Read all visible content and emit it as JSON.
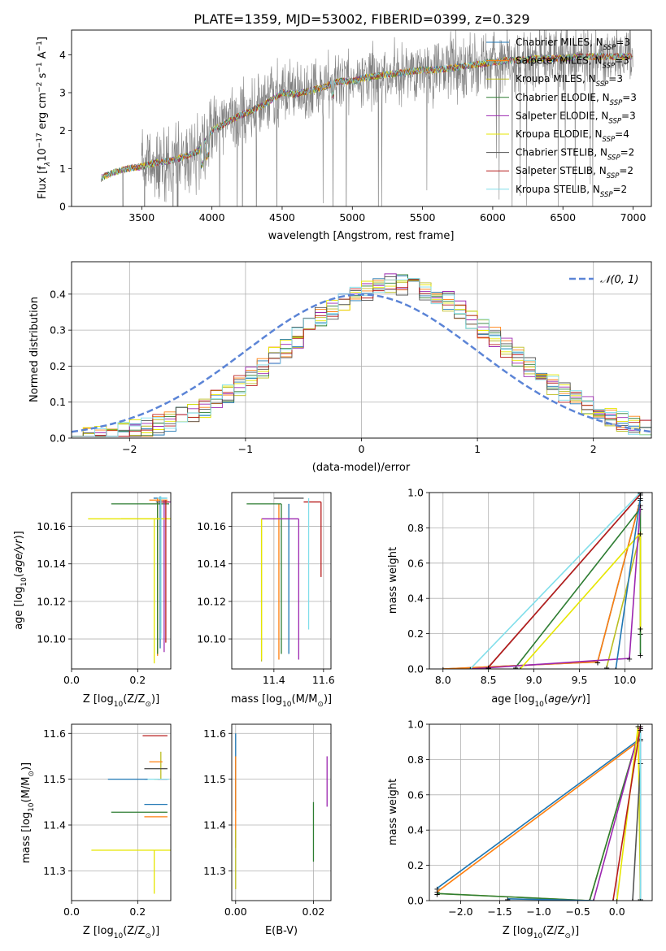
{
  "figure": {
    "title": "PLATE=1359, MJD=53002, FIBERID=0399, z=0.329"
  },
  "model_names": [
    {
      "label": "Chabrier MILES, N",
      "sub": "SSP",
      "tail": "=3",
      "color": "#1f77b4"
    },
    {
      "label": "Salpeter MILES, N",
      "sub": "SSP",
      "tail": "=3",
      "color": "#ff7f0e"
    },
    {
      "label": "Kroupa MILES, N",
      "sub": "SSP",
      "tail": "=3",
      "color": "#bcbd22"
    },
    {
      "label": "Chabrier ELODIE, N",
      "sub": "SSP",
      "tail": "=3",
      "color": "#2e7d32"
    },
    {
      "label": "Salpeter ELODIE, N",
      "sub": "SSP",
      "tail": "=3",
      "color": "#9c27b0"
    },
    {
      "label": "Kroupa ELODIE, N",
      "sub": "SSP",
      "tail": "=4",
      "color": "#e6e600"
    },
    {
      "label": "Chabrier STELIB, N",
      "sub": "SSP",
      "tail": "=2",
      "color": "#555555"
    },
    {
      "label": "Salpeter STELIB, N",
      "sub": "SSP",
      "tail": "=2",
      "color": "#b71c1c"
    },
    {
      "label": "Kroupa STELIB, N",
      "sub": "SSP",
      "tail": "=2",
      "color": "#80deea"
    }
  ],
  "chart_data": [
    {
      "id": "spectrum",
      "type": "line",
      "xlabel": "wavelength [Angstrom, rest frame]",
      "ylabel_parts": [
        "Flux [f",
        "λ",
        "10",
        "−17",
        " erg cm",
        "−2",
        " s",
        "−1",
        " A",
        "−1",
        "]"
      ],
      "xlim": [
        3000,
        7130
      ],
      "ylim": [
        0,
        4.65
      ],
      "xticks": [
        3500,
        4000,
        4500,
        5000,
        5500,
        6000,
        6500,
        7000
      ],
      "yticks": [
        0,
        1,
        2,
        3,
        4
      ],
      "data_color": "#808080",
      "continuum": {
        "x": [
          3210,
          3300,
          3400,
          3500,
          3600,
          3700,
          3800,
          3900,
          4000,
          4100,
          4200,
          4300,
          4400,
          4500,
          4600,
          4700,
          4800,
          4900,
          5000,
          5100,
          5200,
          5300,
          5400,
          5500,
          5600,
          5700,
          5800,
          5900,
          6000,
          6100,
          6200,
          6300,
          6400,
          6500,
          6600,
          6700,
          6800,
          6900,
          7000
        ],
        "y": [
          0.75,
          0.9,
          1.0,
          1.05,
          1.15,
          1.2,
          1.3,
          1.45,
          2.0,
          2.2,
          2.4,
          2.55,
          2.75,
          3.0,
          2.95,
          3.05,
          3.15,
          3.3,
          3.3,
          3.4,
          3.45,
          3.5,
          3.55,
          3.6,
          3.6,
          3.65,
          3.7,
          3.75,
          3.8,
          3.85,
          3.85,
          3.9,
          3.9,
          3.9,
          3.95,
          3.95,
          3.95,
          3.95,
          3.95
        ]
      }
    },
    {
      "id": "residuals",
      "type": "step",
      "xlabel": "(data-model)/error",
      "ylabel": "Normed distribution",
      "xlim": [
        -2.5,
        2.5
      ],
      "ylim": [
        0,
        0.49
      ],
      "xticks": [
        -2,
        -1,
        0,
        1,
        2
      ],
      "yticks": [
        0.0,
        0.1,
        0.2,
        0.3,
        0.4
      ],
      "gaussian_label": "𝒩(0, 1)",
      "gaussian_color": "#5b84d6",
      "bin_width": 0.1
    },
    {
      "id": "age_vs_Z",
      "type": "errorbar",
      "xlabel": "Z [log",
      "xlabel_sub": "10",
      "xlabel_tail": "(Z/Z",
      "xlabel_end": ")]",
      "ylabel": "age  [log",
      "ylabel_sub": "10",
      "ylabel_tail": "(age/yr)]",
      "xlim": [
        0,
        0.3
      ],
      "ylim": [
        10.084,
        10.178
      ],
      "xticks": [
        0.0,
        0.2
      ],
      "yticks": [
        10.1,
        10.12,
        10.14,
        10.16
      ],
      "points": [
        {
          "x": 0.268,
          "xerr": [
            0.02,
            0.02
          ],
          "y": 10.175,
          "yerr": [
            0.08,
            0.001
          ]
        },
        {
          "x": 0.26,
          "xerr": [
            0.025,
            0.03
          ],
          "y": 10.174,
          "yerr": [
            0.083,
            0.001
          ]
        },
        {
          "x": 0.25,
          "xerr": [
            0.1,
            0.04
          ],
          "y": 10.164,
          "yerr": [
            0.0,
            0.0
          ]
        },
        {
          "x": 0.26,
          "xerr": [
            0.14,
            0.035
          ],
          "y": 10.172,
          "yerr": [
            0.08,
            0.001
          ]
        },
        {
          "x": 0.28,
          "xerr": [
            0.02,
            0.02
          ],
          "y": 10.173,
          "yerr": [
            0.08,
            0.001
          ]
        },
        {
          "x": 0.25,
          "xerr": [
            0.2,
            0.05
          ],
          "y": 10.164,
          "yerr": [
            0.077,
            0.0
          ]
        },
        {
          "x": 0.27,
          "xerr": [
            0.015,
            0.02
          ],
          "y": 10.173,
          "yerr": [
            0.07,
            0.001
          ]
        },
        {
          "x": 0.285,
          "xerr": [
            0.015,
            0.01
          ],
          "y": 10.173,
          "yerr": [
            0.075,
            0.001
          ]
        },
        {
          "x": 0.27,
          "xerr": [
            0.01,
            0.02
          ],
          "y": 10.175,
          "yerr": [
            0.075,
            0.001
          ]
        }
      ]
    },
    {
      "id": "age_vs_mass",
      "type": "errorbar",
      "xlabel": "mass [log",
      "xlabel_sub": "10",
      "xlabel_tail": "(M/M",
      "xlabel_end": ")]",
      "xlim": [
        11.23,
        11.63
      ],
      "ylim": [
        10.084,
        10.178
      ],
      "xticks": [
        11.4,
        11.6
      ],
      "yticks": [
        10.1,
        10.12,
        10.14,
        10.16
      ],
      "points": [
        {
          "x": 11.46,
          "xerr": [
            0.0,
            0.0
          ],
          "y": 10.172,
          "yerr": [
            0.08,
            0.0
          ]
        },
        {
          "x": 11.42,
          "xerr": [
            0.0,
            0.0
          ],
          "y": 10.172,
          "yerr": [
            0.083,
            0.0
          ]
        },
        {
          "x": 11.35,
          "xerr": [
            0.0,
            0.0
          ],
          "y": 10.164,
          "yerr": [
            0.076,
            0.0
          ]
        },
        {
          "x": 11.43,
          "xerr": [
            0.14,
            0.0
          ],
          "y": 10.172,
          "yerr": [
            0.08,
            0.0
          ]
        },
        {
          "x": 11.5,
          "xerr": [
            0.15,
            0.0
          ],
          "y": 10.164,
          "yerr": [
            0.075,
            0.0
          ]
        },
        {
          "x": 11.35,
          "xerr": [
            0.0,
            0.0
          ],
          "y": 10.164,
          "yerr": [
            0.075,
            0.0
          ]
        },
        {
          "x": 11.52,
          "xerr": [
            0.12,
            0.0
          ],
          "y": 10.175,
          "yerr": [
            0.0,
            0.0
          ]
        },
        {
          "x": 11.59,
          "xerr": [
            0.07,
            0.0
          ],
          "y": 10.173,
          "yerr": [
            0.04,
            0.0
          ]
        },
        {
          "x": 11.54,
          "xerr": [
            0.0,
            0.0
          ],
          "y": 10.175,
          "yerr": [
            0.07,
            0.0
          ]
        }
      ]
    },
    {
      "id": "mass_weight_vs_age",
      "type": "line",
      "xlabel": "age  [log",
      "xlabel_sub": "10",
      "xlabel_tail": "(age/yr)]",
      "ylabel": "mass weight",
      "xlim": [
        7.85,
        10.3
      ],
      "ylim": [
        0,
        1.0
      ],
      "xticks": [
        8.0,
        8.5,
        9.0,
        9.5,
        10.0
      ],
      "yticks": [
        0.0,
        0.2,
        0.4,
        0.6,
        0.8,
        1.0
      ],
      "series": [
        {
          "x": [
            8.0,
            9.7,
            10.17
          ],
          "y": [
            0.0,
            0.04,
            0.96
          ]
        },
        {
          "x": [
            8.0,
            9.7,
            10.17
          ],
          "y": [
            0.0,
            0.04,
            0.96
          ]
        },
        {
          "x": [
            9.8,
            10.17,
            10.17
          ],
          "y": [
            0.01,
            0.77,
            0.2
          ]
        },
        {
          "x": [
            8.8,
            10.17,
            10.17
          ],
          "y": [
            0.01,
            0.91,
            0.08
          ]
        },
        {
          "x": [
            8.3,
            10.05,
            10.17
          ],
          "y": [
            0.0,
            0.06,
            0.93
          ]
        },
        {
          "x": [
            8.85,
            10.17,
            10.17
          ],
          "y": [
            0.0,
            0.77,
            0.23
          ]
        },
        {
          "x": [
            8.5,
            10.17
          ],
          "y": [
            0.01,
            0.99
          ]
        },
        {
          "x": [
            8.5,
            10.17
          ],
          "y": [
            0.01,
            0.99
          ]
        },
        {
          "x": [
            8.3,
            10.17
          ],
          "y": [
            0.0,
            1.0
          ]
        },
        {
          "x": [
            9.9,
            10.17
          ],
          "y": [
            0.0,
            0.97
          ]
        }
      ]
    },
    {
      "id": "mass_vs_Z",
      "type": "errorbar",
      "xlabel": "Z [log",
      "xlabel_sub": "10",
      "xlabel_tail": "(Z/Z",
      "xlabel_end": ")]",
      "ylabel": "mass [log",
      "ylabel_sub": "10",
      "ylabel_tail": "(M/M",
      "ylabel_end": ")]",
      "xlim": [
        0,
        0.3
      ],
      "ylim": [
        11.235,
        11.62
      ],
      "xticks": [
        0.0,
        0.2
      ],
      "yticks": [
        11.3,
        11.4,
        11.5,
        11.6
      ],
      "points": [
        {
          "x": 0.27,
          "xerr": [
            0.05,
            0.02
          ],
          "y": 11.445,
          "yerr": [
            0.0,
            0.0
          ]
        },
        {
          "x": 0.27,
          "xerr": [
            0.05,
            0.02
          ],
          "y": 11.418,
          "yerr": [
            0.0,
            0.0
          ]
        },
        {
          "x": 0.27,
          "xerr": [
            0.02,
            0.02
          ],
          "y": 11.5,
          "yerr": [
            0.0,
            0.06
          ]
        },
        {
          "x": 0.26,
          "xerr": [
            0.14,
            0.03
          ],
          "y": 11.428,
          "yerr": [
            0.0,
            0.0
          ]
        },
        {
          "x": 0.28,
          "xerr": [
            0.02,
            0.01
          ],
          "y": 11.5,
          "yerr": [
            0.0,
            0.0
          ]
        },
        {
          "x": 0.25,
          "xerr": [
            0.19,
            0.05
          ],
          "y": 11.345,
          "yerr": [
            0.095,
            0.0
          ]
        },
        {
          "x": 0.27,
          "xerr": [
            0.05,
            0.02
          ],
          "y": 11.523,
          "yerr": [
            0.0,
            0.0
          ]
        },
        {
          "x": 0.285,
          "xerr": [
            0.07,
            0.005
          ],
          "y": 11.595,
          "yerr": [
            0.0,
            0.0
          ]
        },
        {
          "x": 0.29,
          "xerr": [
            0.07,
            0.005
          ],
          "y": 11.5,
          "yerr": [
            0.0,
            0.0
          ]
        },
        {
          "x": 0.21,
          "xerr": [
            0.1,
            0.02
          ],
          "y": 11.5,
          "yerr": [
            0.0,
            0.0
          ]
        },
        {
          "x": 0.255,
          "xerr": [
            0.02,
            0.02
          ],
          "y": 11.538,
          "yerr": [
            0.0,
            0.0
          ]
        }
      ]
    },
    {
      "id": "mass_vs_ebv",
      "type": "errorbar",
      "xlabel": "E(B-V)",
      "xlim": [
        -0.001,
        0.0245
      ],
      "ylim": [
        11.235,
        11.62
      ],
      "xticks": [
        0.0,
        0.02
      ],
      "yticks": [
        11.3,
        11.4,
        11.5,
        11.6
      ],
      "points": [
        {
          "x": 0.0,
          "xerr": [
            0,
            0
          ],
          "y": 11.5,
          "yerr": [
            0.07,
            0.1
          ]
        },
        {
          "x": 0.0,
          "xerr": [
            0,
            0
          ],
          "y": 11.45,
          "yerr": [
            0.1,
            0.1
          ]
        },
        {
          "x": 0.0,
          "xerr": [
            0,
            0
          ],
          "y": 11.34,
          "yerr": [
            0.08,
            0.05
          ]
        },
        {
          "x": 0.02,
          "xerr": [
            0,
            0
          ],
          "y": 11.4,
          "yerr": [
            0.08,
            0.05
          ]
        },
        {
          "x": 0.0235,
          "xerr": [
            0,
            0
          ],
          "y": 11.5,
          "yerr": [
            0.06,
            0.05
          ]
        }
      ]
    },
    {
      "id": "mass_weight_vs_Z",
      "type": "line",
      "xlabel": "Z [log",
      "xlabel_sub": "10",
      "xlabel_tail": "(Z/Z",
      "xlabel_end": ")]",
      "ylabel": "mass weight",
      "xlim": [
        -2.4,
        0.45
      ],
      "ylim": [
        0,
        1.0
      ],
      "xticks": [
        -2.0,
        -1.5,
        -1.0,
        -0.5,
        0.0
      ],
      "yticks": [
        0.0,
        0.2,
        0.4,
        0.6,
        0.8,
        1.0
      ],
      "series": [
        {
          "x": [
            -2.3,
            0.3,
            0.3
          ],
          "y": [
            0.07,
            0.92,
            0.01
          ]
        },
        {
          "x": [
            -2.3,
            0.3
          ],
          "y": [
            0.05,
            0.91
          ]
        },
        {
          "x": [
            -2.3,
            -0.35,
            0.3,
            0.3
          ],
          "y": [
            0.04,
            0.0,
            0.98,
            0.0
          ]
        },
        {
          "x": [
            -2.3,
            -0.35,
            0.3,
            0.3
          ],
          "y": [
            0.04,
            0.0,
            0.98,
            0.0
          ]
        },
        {
          "x": [
            -0.3,
            0.3,
            0.3
          ],
          "y": [
            0.0,
            0.99,
            0.0
          ]
        },
        {
          "x": [
            0.0,
            0.27,
            0.3
          ],
          "y": [
            0.0,
            0.99,
            0.0
          ]
        },
        {
          "x": [
            0.2,
            0.3,
            0.3
          ],
          "y": [
            0.0,
            0.78,
            0.0
          ]
        },
        {
          "x": [
            -0.05,
            0.3
          ],
          "y": [
            0.0,
            0.99
          ]
        },
        {
          "x": [
            0.3,
            0.3
          ],
          "y": [
            0.0,
            0.97
          ]
        },
        {
          "x": [
            -1.4,
            -0.3
          ],
          "y": [
            0.01,
            0.0
          ]
        }
      ]
    }
  ]
}
